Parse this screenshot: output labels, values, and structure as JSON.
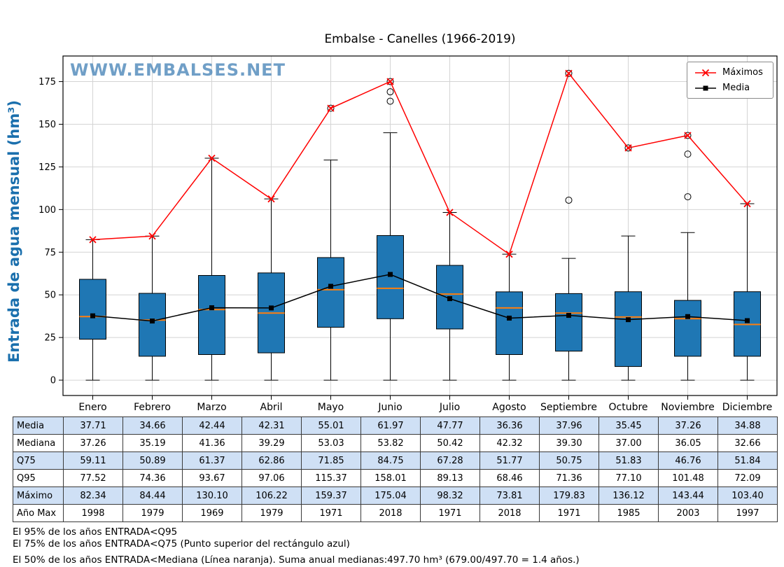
{
  "title": "Embalse - Canelles (1966-2019)",
  "watermark": "WWW.EMBALSES.NET",
  "ylabel": "Entrada de agua mensual (hm³)",
  "legend": {
    "items": [
      {
        "label": "Máximos"
      },
      {
        "label": "Media"
      }
    ]
  },
  "chart_data": {
    "type": "boxplot",
    "title": "Embalse - Canelles (1966-2019)",
    "xlabel": "",
    "ylabel": "Entrada de agua mensual (hm³)",
    "grid": true,
    "legend_position": "upper right",
    "ylim": [
      -9,
      190
    ],
    "yticks": [
      0,
      25,
      50,
      75,
      100,
      125,
      150,
      175
    ],
    "categories": [
      "Enero",
      "Febrero",
      "Marzo",
      "Abril",
      "Mayo",
      "Junio",
      "Julio",
      "Agosto",
      "Septiembre",
      "Octubre",
      "Noviembre",
      "Diciembre"
    ],
    "colors": {
      "box_fill": "#1f77b4",
      "box_edge": "#000000",
      "median_line": "#ff7f0e",
      "max_line": "#ff0000",
      "media_line": "#000000",
      "grid": "#d4d4d4"
    },
    "boxes": [
      {
        "whisker_low": 0,
        "q1": 24,
        "median": 37.26,
        "q3": 59.11,
        "whisker_high": 82.34,
        "outliers": []
      },
      {
        "whisker_low": 0,
        "q1": 14,
        "median": 35.19,
        "q3": 50.89,
        "whisker_high": 84.44,
        "outliers": []
      },
      {
        "whisker_low": 0,
        "q1": 15,
        "median": 41.36,
        "q3": 61.37,
        "whisker_high": 130.1,
        "outliers": []
      },
      {
        "whisker_low": 0,
        "q1": 16,
        "median": 39.29,
        "q3": 62.86,
        "whisker_high": 106.22,
        "outliers": []
      },
      {
        "whisker_low": 0,
        "q1": 31,
        "median": 53.03,
        "q3": 71.85,
        "whisker_high": 129.0,
        "outliers": [
          159.37
        ]
      },
      {
        "whisker_low": 0,
        "q1": 36,
        "median": 53.82,
        "q3": 84.75,
        "whisker_high": 145.0,
        "outliers": [
          163.5,
          169.0,
          175.04
        ]
      },
      {
        "whisker_low": 0,
        "q1": 30,
        "median": 50.42,
        "q3": 67.28,
        "whisker_high": 98.32,
        "outliers": []
      },
      {
        "whisker_low": 0,
        "q1": 15,
        "median": 42.32,
        "q3": 51.77,
        "whisker_high": 73.81,
        "outliers": []
      },
      {
        "whisker_low": 0,
        "q1": 17,
        "median": 39.3,
        "q3": 50.75,
        "whisker_high": 71.36,
        "outliers": [
          105.5,
          179.83
        ]
      },
      {
        "whisker_low": 0,
        "q1": 8,
        "median": 37.0,
        "q3": 51.83,
        "whisker_high": 84.5,
        "outliers": [
          136.12
        ]
      },
      {
        "whisker_low": 0,
        "q1": 14,
        "median": 36.05,
        "q3": 46.76,
        "whisker_high": 86.5,
        "outliers": [
          107.5,
          132.5,
          143.44
        ]
      },
      {
        "whisker_low": 0,
        "q1": 14,
        "median": 32.66,
        "q3": 51.84,
        "whisker_high": 103.4,
        "outliers": []
      }
    ],
    "series": [
      {
        "name": "Máximos",
        "values": [
          82.34,
          84.44,
          130.1,
          106.22,
          159.37,
          175.04,
          98.32,
          73.81,
          179.83,
          136.12,
          143.44,
          103.4
        ]
      },
      {
        "name": "Media",
        "values": [
          37.71,
          34.66,
          42.44,
          42.31,
          55.01,
          61.97,
          47.77,
          36.36,
          37.96,
          35.45,
          37.26,
          34.88
        ]
      }
    ]
  },
  "table": {
    "rows": [
      {
        "label": "Media",
        "values": [
          "37.71",
          "34.66",
          "42.44",
          "42.31",
          "55.01",
          "61.97",
          "47.77",
          "36.36",
          "37.96",
          "35.45",
          "37.26",
          "34.88"
        ]
      },
      {
        "label": "Mediana",
        "values": [
          "37.26",
          "35.19",
          "41.36",
          "39.29",
          "53.03",
          "53.82",
          "50.42",
          "42.32",
          "39.30",
          "37.00",
          "36.05",
          "32.66"
        ]
      },
      {
        "label": "Q75",
        "values": [
          "59.11",
          "50.89",
          "61.37",
          "62.86",
          "71.85",
          "84.75",
          "67.28",
          "51.77",
          "50.75",
          "51.83",
          "46.76",
          "51.84"
        ]
      },
      {
        "label": "Q95",
        "values": [
          "77.52",
          "74.36",
          "93.67",
          "97.06",
          "115.37",
          "158.01",
          "89.13",
          "68.46",
          "71.36",
          "77.10",
          "101.48",
          "72.09"
        ]
      },
      {
        "label": "Máximo",
        "values": [
          "82.34",
          "84.44",
          "130.10",
          "106.22",
          "159.37",
          "175.04",
          "98.32",
          "73.81",
          "179.83",
          "136.12",
          "143.44",
          "103.40"
        ]
      },
      {
        "label": "Año Max",
        "values": [
          "1998",
          "1979",
          "1969",
          "1979",
          "1971",
          "2018",
          "1971",
          "2018",
          "1971",
          "1985",
          "2003",
          "1997"
        ]
      }
    ]
  },
  "footnotes": [
    "El 95% de los años ENTRADA<Q95",
    "El 75% de los años ENTRADA<Q75 (Punto superior del rectángulo azul)",
    "El 50% de los años ENTRADA<Mediana (Línea naranja). Suma anual medianas:497.70 hm³ (679.00/497.70 = 1.4 años.)"
  ]
}
